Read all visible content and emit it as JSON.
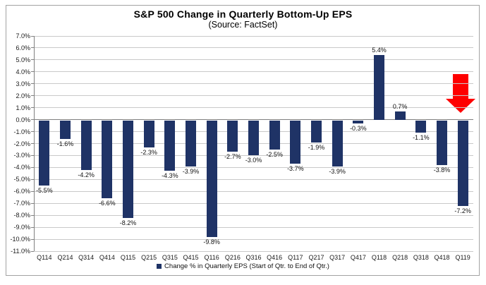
{
  "title": "S&P 500 Change in Quarterly Bottom-Up EPS",
  "subtitle": "(Source: FactSet)",
  "colors": {
    "bar": "#1f3366",
    "arrow": "#fe0000",
    "gridline": "#c9c9c9",
    "zero_line": "#7f7f7f",
    "axis": "#808080",
    "border": "#a3a3a3",
    "text": "#111111"
  },
  "chart_data": {
    "type": "bar",
    "title": "S&P 500 Change in Quarterly Bottom-Up EPS",
    "subtitle": "(Source: FactSet)",
    "categories": [
      "Q114",
      "Q214",
      "Q314",
      "Q414",
      "Q115",
      "Q215",
      "Q315",
      "Q415",
      "Q116",
      "Q216",
      "Q316",
      "Q416",
      "Q117",
      "Q217",
      "Q317",
      "Q417",
      "Q118",
      "Q218",
      "Q318",
      "Q418",
      "Q119"
    ],
    "series": [
      {
        "name": "Change % in Quarterly EPS (Start of Qtr. to End of Qtr.)",
        "values": [
          -5.5,
          -1.6,
          -4.2,
          -6.6,
          -8.2,
          -2.3,
          -4.3,
          -3.9,
          -9.8,
          -2.7,
          -3.0,
          -2.5,
          -3.7,
          -1.9,
          -3.9,
          -0.3,
          5.4,
          0.7,
          -1.1,
          -3.8,
          -7.2
        ],
        "labels": [
          "-5.5%",
          "-1.6%",
          "-4.2%",
          "-6.6%",
          "-8.2%",
          "-2.3%",
          "-4.3%",
          "-3.9%",
          "-9.8%",
          "-2.7%",
          "-3.0%",
          "-2.5%",
          "-3.7%",
          "-1.9%",
          "-3.9%",
          "-0.3%",
          "5.4%",
          "0.7%",
          "-1.1%",
          "-3.8%",
          "-7.2%"
        ],
        "color": "#1f3366"
      }
    ],
    "ylim": [
      -11.0,
      7.0
    ],
    "ytick_step": 1.0,
    "ytick_format": "0.0%",
    "grid": true,
    "legend_position": "bottom",
    "annotation": "large red downward arrow highlighting Q119 bar"
  }
}
